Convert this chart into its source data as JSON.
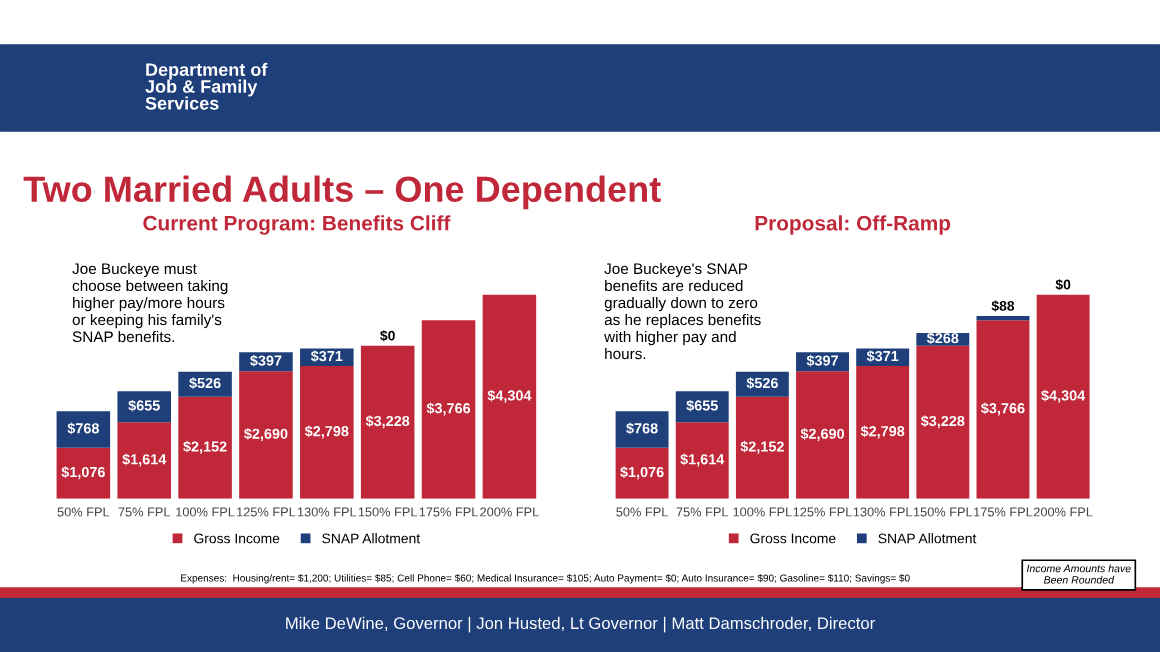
{
  "chart_data": [
    {
      "type": "bar",
      "stacked": true,
      "title": "Current Program: Benefits Cliff",
      "legend": "bottom",
      "categories": [
        "50% FPL",
        "75% FPL",
        "100% FPL",
        "125% FPL",
        "130% FPL",
        "150% FPL",
        "175% FPL",
        "200% FPL"
      ],
      "series": [
        {
          "name": "Gross Income",
          "color": "#c0283a",
          "values": [
            1076,
            1614,
            2152,
            2690,
            2798,
            3228,
            3766,
            4304
          ],
          "value_labels": [
            "$1,076",
            "$1,614",
            "$2,152",
            "$2,690",
            "$2,798",
            "$3,228",
            "$3,766",
            "$4,304"
          ]
        },
        {
          "name": "SNAP Allotment",
          "color": "#1f3f7a",
          "values": [
            768,
            655,
            526,
            397,
            371,
            0,
            null,
            null
          ],
          "value_labels": [
            "$768",
            "$655",
            "$526",
            "$397",
            "$371",
            "$0",
            null,
            null
          ]
        }
      ],
      "annotations": [
        "Department of\nJob & Family\nServices",
        "Two Married Adults – One Dependent",
        "Joe Buckeye must\nchoose between taking\nhigher pay/more hours\nor keeping his family's\nSNAP benefits.",
        "Expenses:  Housing/rent= $1,200; Utilities= $85; Cell Phone= $60; Medical Insurance= $105; Auto Payment= $0; Auto Insurance= $90; Gasoline= $110; Savings= $0",
        "Mike DeWine, Governor | Jon Husted, Lt Governor | Matt Damschroder, Director"
      ]
    },
    {
      "type": "bar",
      "stacked": true,
      "title": "Proposal: Off-Ramp",
      "legend": "bottom",
      "categories": [
        "50% FPL",
        "75% FPL",
        "100% FPL",
        "125% FPL",
        "130% FPL",
        "150% FPL",
        "175% FPL",
        "200% FPL"
      ],
      "series": [
        {
          "name": "Gross Income",
          "color": "#c0283a",
          "values": [
            1076,
            1614,
            2152,
            2690,
            2798,
            3228,
            3766,
            4304
          ],
          "value_labels": [
            "$1,076",
            "$1,614",
            "$2,152",
            "$2,690",
            "$2,798",
            "$3,228",
            "$3,766",
            "$4,304"
          ]
        },
        {
          "name": "SNAP Allotment",
          "color": "#1f3f7a",
          "values": [
            768,
            655,
            526,
            397,
            371,
            268,
            88,
            0
          ],
          "value_labels": [
            "$768",
            "$655",
            "$526",
            "$397",
            "$371",
            "$268",
            "$88",
            "$0"
          ]
        }
      ],
      "annotations": [
        "Joe Buckeye's SNAP\nbenefits are reduced\ngradually down to zero\nas he replaces benefits\nwith higher pay and\nhours.",
        "Income Amounts have\nBeen Rounded"
      ]
    }
  ]
}
